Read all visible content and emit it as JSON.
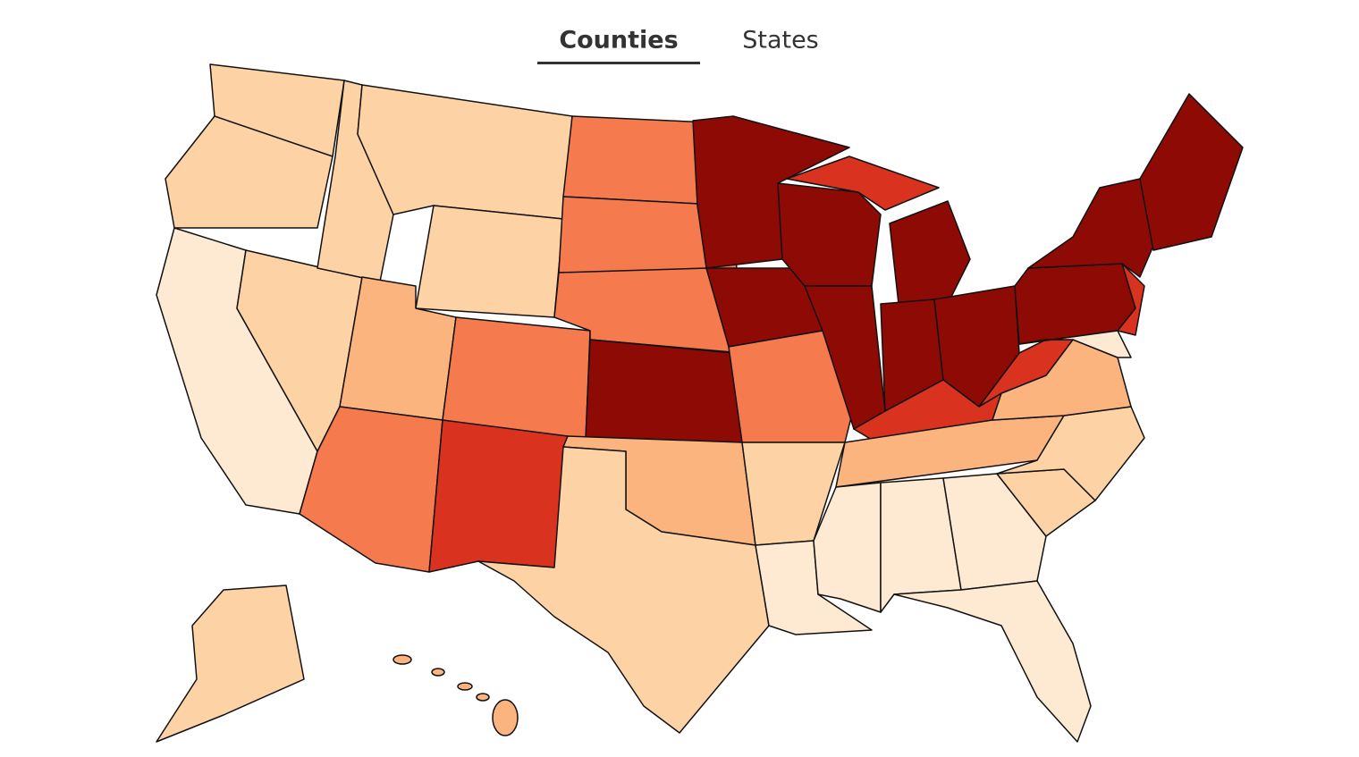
{
  "tabs": [
    {
      "label": "Counties",
      "selected": true
    },
    {
      "label": "States",
      "selected": false
    }
  ]
}
